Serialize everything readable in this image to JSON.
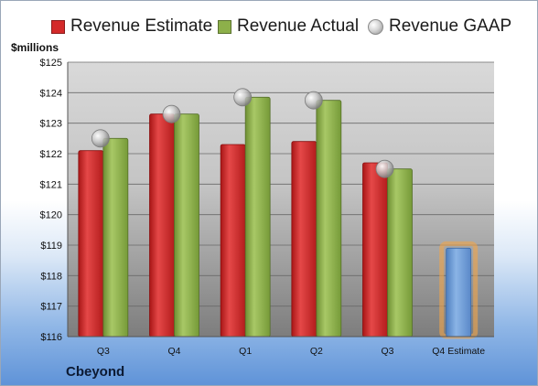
{
  "legend": {
    "estimate_label": "Revenue Estimate",
    "actual_label": "Revenue Actual",
    "gaap_label": "Revenue GAAP"
  },
  "units_label": "$millions",
  "company": "Cbeyond",
  "colors": {
    "estimate": "#d42a2a",
    "actual": "#8db04a",
    "gaap": "#b8b8b8",
    "forecast": "#6f9fd6",
    "forecast_glow": "#f2a54a"
  },
  "chart_data": {
    "type": "bar",
    "categories": [
      "Q3",
      "Q4",
      "Q1",
      "Q2",
      "Q3",
      "Q4 Estimate"
    ],
    "series": [
      {
        "name": "Revenue Estimate",
        "values": [
          122.1,
          123.3,
          122.3,
          122.4,
          121.7,
          118.9
        ]
      },
      {
        "name": "Revenue Actual",
        "values": [
          122.5,
          123.3,
          123.85,
          123.75,
          121.5,
          null
        ]
      },
      {
        "name": "Revenue GAAP",
        "values": [
          122.5,
          123.3,
          123.85,
          123.75,
          121.5,
          null
        ]
      }
    ],
    "ylabel": "$millions",
    "ylim": [
      116,
      125
    ],
    "yticks": [
      "$116",
      "$117",
      "$118",
      "$119",
      "$120",
      "$121",
      "$122",
      "$123",
      "$124",
      "$125"
    ],
    "grid": true,
    "legend_position": "top"
  }
}
